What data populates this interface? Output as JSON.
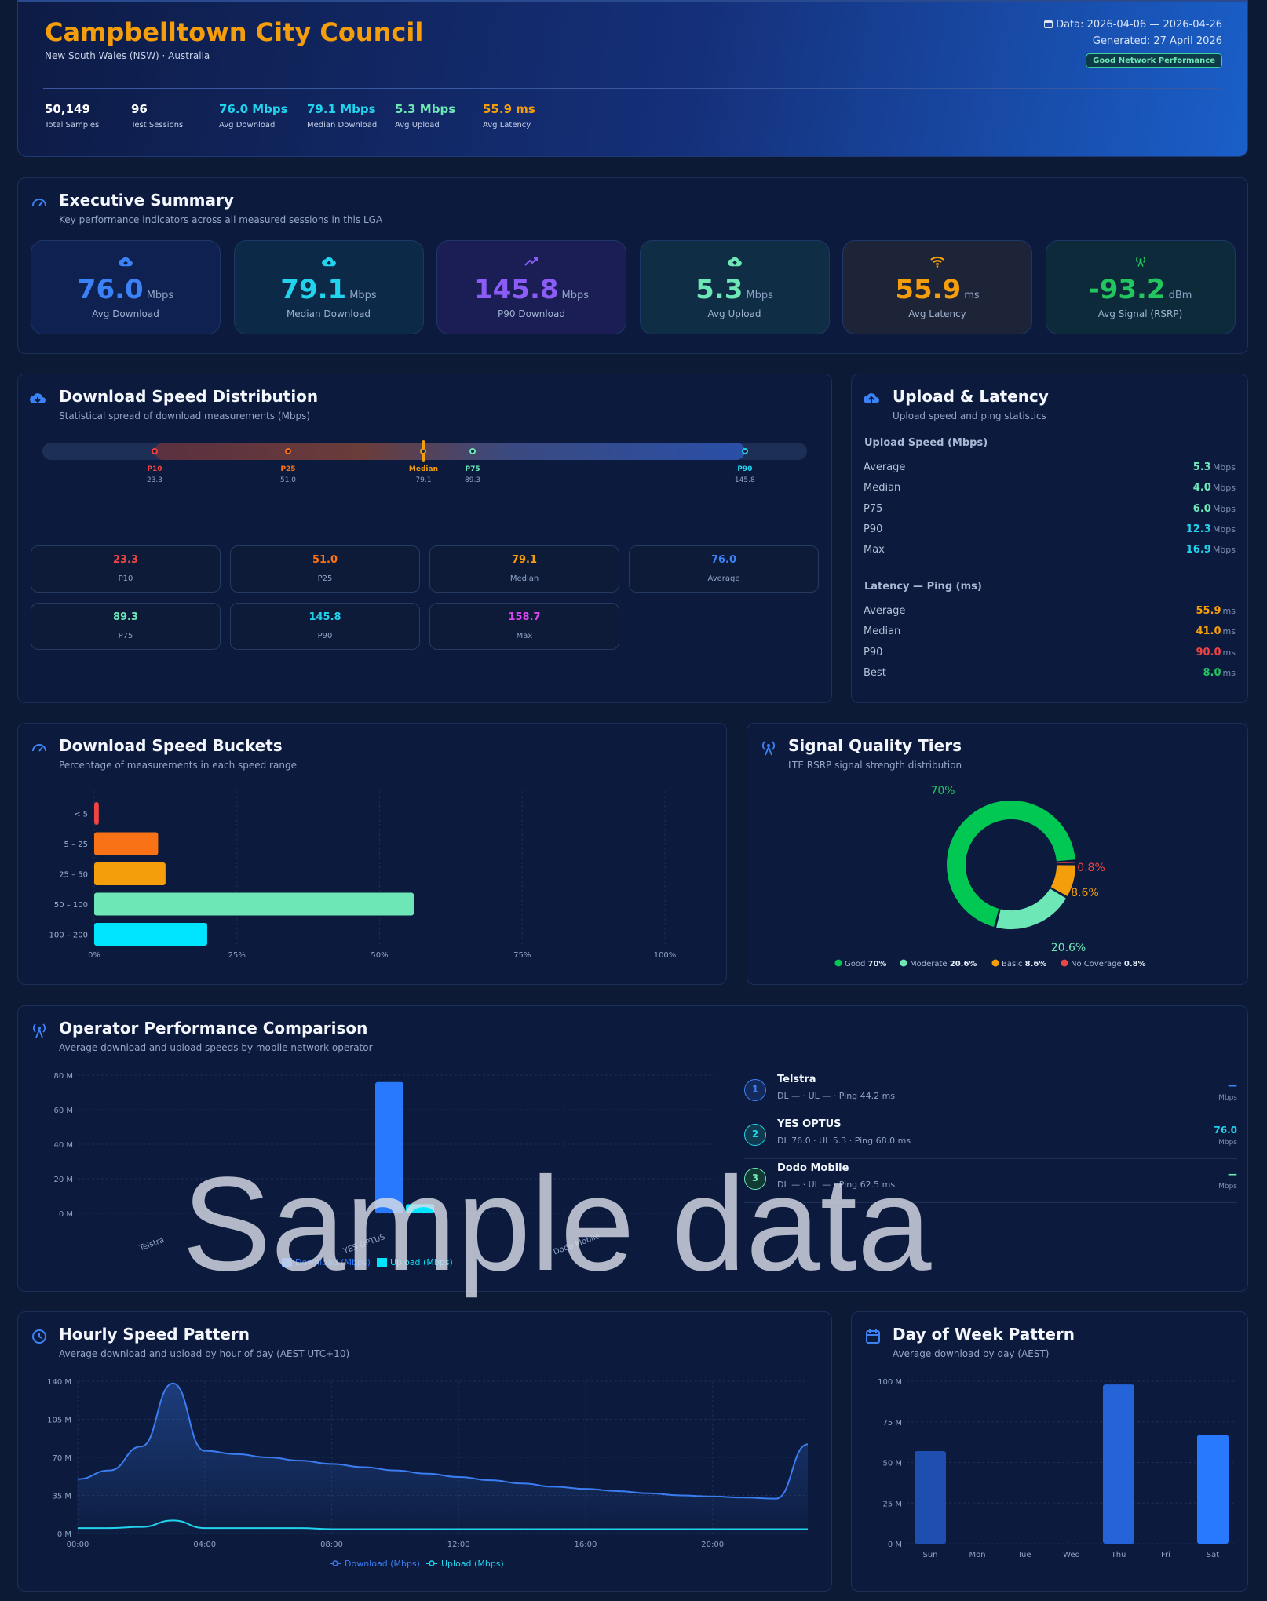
{
  "header": {
    "title": "Campbelltown City Council",
    "subtitle": "New South Wales (NSW) · Australia",
    "date_range": "Data: 2026-04-06 — 2026-04-26",
    "generated": "Generated: 27 April 2026",
    "badge": "Good Network Performance",
    "stats": [
      {
        "value": "50,149",
        "label": "Total Samples",
        "color": "#ffffff"
      },
      {
        "value": "96",
        "label": "Test Sessions",
        "color": "#ffffff"
      },
      {
        "value": "76.0 Mbps",
        "label": "Avg Download",
        "color": "#22d3ee"
      },
      {
        "value": "79.1 Mbps",
        "label": "Median Download",
        "color": "#22d3ee"
      },
      {
        "value": "5.3 Mbps",
        "label": "Avg Upload",
        "color": "#6ee7b7"
      },
      {
        "value": "55.9 ms",
        "label": "Avg Latency",
        "color": "#f59e0b"
      }
    ]
  },
  "executive": {
    "title": "Executive Summary",
    "subtitle": "Key performance indicators across all measured sessions in this LGA",
    "kpis": [
      {
        "icon": "cloud-download-icon",
        "value": "76.0",
        "unit": "Mbps",
        "label": "Avg Download",
        "color": "#3b82f6"
      },
      {
        "icon": "cloud-download-icon",
        "value": "79.1",
        "unit": "Mbps",
        "label": "Median Download",
        "color": "#22d3ee"
      },
      {
        "icon": "trending-up-icon",
        "value": "145.8",
        "unit": "Mbps",
        "label": "P90 Download",
        "color": "#8b5cf6"
      },
      {
        "icon": "cloud-upload-icon",
        "value": "5.3",
        "unit": "Mbps",
        "label": "Avg Upload",
        "color": "#6ee7b7"
      },
      {
        "icon": "wifi-icon",
        "value": "55.9",
        "unit": "ms",
        "label": "Avg Latency",
        "color": "#f59e0b"
      },
      {
        "icon": "signal-tower-icon",
        "value": "-93.2",
        "unit": "dBm",
        "label": "Avg Signal (RSRP)",
        "color": "#22c55e"
      }
    ]
  },
  "distribution": {
    "title": "Download Speed Distribution",
    "subtitle": "Statistical spread of download measurements (Mbps)",
    "markers": [
      {
        "name": "P10",
        "value": 23.3,
        "label": "23.3",
        "color": "#ef4444"
      },
      {
        "name": "P25",
        "value": 51.0,
        "label": "51.0",
        "color": "#f97316"
      },
      {
        "name": "Median",
        "value": 79.1,
        "label": "79.1",
        "color": "#f59e0b"
      },
      {
        "name": "P75",
        "value": 89.3,
        "label": "89.3",
        "color": "#6ee7b7"
      },
      {
        "name": "P90",
        "value": 145.8,
        "label": "145.8",
        "color": "#22d3ee"
      }
    ],
    "boxes": [
      {
        "value": "23.3",
        "label": "P10",
        "color": "#ef4444"
      },
      {
        "value": "51.0",
        "label": "P25",
        "color": "#f97316"
      },
      {
        "value": "79.1",
        "label": "Median",
        "color": "#f59e0b"
      },
      {
        "value": "76.0",
        "label": "Average",
        "color": "#3b82f6"
      },
      {
        "value": "89.3",
        "label": "P75",
        "color": "#6ee7b7"
      },
      {
        "value": "145.8",
        "label": "P90",
        "color": "#22d3ee"
      },
      {
        "value": "158.7",
        "label": "Max",
        "color": "#d946ef"
      }
    ]
  },
  "upload_latency": {
    "title": "Upload & Latency",
    "subtitle": "Upload speed and ping statistics",
    "upload_heading": "Upload Speed (Mbps)",
    "upload": [
      {
        "label": "Average",
        "value": "5.3",
        "unit": "Mbps",
        "color": "#6ee7b7"
      },
      {
        "label": "Median",
        "value": "4.0",
        "unit": "Mbps",
        "color": "#6ee7b7"
      },
      {
        "label": "P75",
        "value": "6.0",
        "unit": "Mbps",
        "color": "#6ee7b7"
      },
      {
        "label": "P90",
        "value": "12.3",
        "unit": "Mbps",
        "color": "#22d3ee"
      },
      {
        "label": "Max",
        "value": "16.9",
        "unit": "Mbps",
        "color": "#22d3ee"
      }
    ],
    "latency_heading": "Latency — Ping (ms)",
    "latency": [
      {
        "label": "Average",
        "value": "55.9",
        "unit": "ms",
        "color": "#f59e0b"
      },
      {
        "label": "Median",
        "value": "41.0",
        "unit": "ms",
        "color": "#f59e0b"
      },
      {
        "label": "P90",
        "value": "90.0",
        "unit": "ms",
        "color": "#ef4444"
      },
      {
        "label": "Best",
        "value": "8.0",
        "unit": "ms",
        "color": "#22c55e"
      }
    ]
  },
  "buckets_section": {
    "title": "Download Speed Buckets",
    "subtitle": "Percentage of measurements in each speed range"
  },
  "signal_section": {
    "title": "Signal Quality Tiers",
    "subtitle": "LTE RSRP signal strength distribution"
  },
  "operators_section": {
    "title": "Operator Performance Comparison",
    "subtitle": "Average download and upload speeds by mobile network operator",
    "list": [
      {
        "rank": "1",
        "name": "Telstra",
        "detail": "DL — · UL — · Ping 44.2 ms",
        "speed": "—",
        "unit": "Mbps",
        "color": "#3b82f6"
      },
      {
        "rank": "2",
        "name": "YES OPTUS",
        "detail": "DL 76.0 · UL 5.3 · Ping 68.0 ms",
        "speed": "76.0",
        "unit": "Mbps",
        "color": "#22d3ee"
      },
      {
        "rank": "3",
        "name": "Dodo Mobile",
        "detail": "DL — · UL — · Ping 62.5 ms",
        "speed": "—",
        "unit": "Mbps",
        "color": "#6ee7b7"
      }
    ]
  },
  "hourly_section": {
    "title": "Hourly Speed Pattern",
    "subtitle": "Average download and upload by hour of day (AEST UTC+10)"
  },
  "dow_section": {
    "title": "Day of Week Pattern",
    "subtitle": "Average download by day (AEST)"
  },
  "watermark": "Sample data",
  "chart_data": [
    {
      "id": "buckets",
      "type": "bar",
      "orientation": "horizontal",
      "categories": [
        "< 5",
        "5 – 25",
        "25 – 50",
        "50 – 100",
        "100 – 200"
      ],
      "values": [
        0.8,
        11.2,
        12.5,
        56.0,
        19.8
      ],
      "colors": [
        "#ef4444",
        "#f97316",
        "#f59e0b",
        "#6ee7b7",
        "#00e5ff"
      ],
      "xlim": [
        0,
        100
      ],
      "xticks": [
        "0%",
        "25%",
        "50%",
        "75%",
        "100%"
      ]
    },
    {
      "id": "signal",
      "type": "pie",
      "donut": true,
      "labels": [
        "Good",
        "Moderate",
        "Basic",
        "No Coverage"
      ],
      "values": [
        70,
        20.6,
        8.6,
        0.8
      ],
      "display": [
        "70%",
        "20.6%",
        "8.6%",
        "0.8%"
      ],
      "colors": [
        "#00c853",
        "#6ee7b7",
        "#f59e0b",
        "#ef4444"
      ]
    },
    {
      "id": "operators",
      "type": "bar",
      "categories": [
        "Telstra",
        "YES OPTUS",
        "Dodo Mobile"
      ],
      "series": [
        {
          "name": "Download (Mbps)",
          "values": [
            0,
            76.0,
            0
          ],
          "color": "#2979ff"
        },
        {
          "name": "Upload (Mbps)",
          "values": [
            0,
            5.3,
            0
          ],
          "color": "#00e5ff"
        }
      ],
      "ylim": [
        0,
        80
      ],
      "yticks": [
        "0 M",
        "20 M",
        "40 M",
        "60 M",
        "80 M"
      ]
    },
    {
      "id": "hourly",
      "type": "line",
      "x": [
        0,
        1,
        2,
        3,
        4,
        5,
        6,
        7,
        8,
        9,
        10,
        11,
        12,
        13,
        14,
        15,
        16,
        17,
        18,
        19,
        20,
        21,
        22,
        23
      ],
      "xticks": [
        "00:00",
        "04:00",
        "08:00",
        "12:00",
        "16:00",
        "20:00"
      ],
      "series": [
        {
          "name": "Download (Mbps)",
          "values": [
            50,
            58,
            80,
            138,
            76,
            73,
            70,
            67,
            64,
            61,
            58,
            55,
            52,
            49,
            46,
            43,
            41,
            39,
            37,
            35,
            34,
            33,
            32,
            82
          ],
          "color": "#3b7cf0"
        },
        {
          "name": "Upload (Mbps)",
          "values": [
            5,
            5,
            6,
            12,
            5,
            5,
            5,
            5,
            4,
            4,
            4,
            4,
            4,
            4,
            4,
            4,
            4,
            4,
            4,
            4,
            4,
            4,
            4,
            4
          ],
          "color": "#22d3ee"
        }
      ],
      "ylim": [
        0,
        140
      ],
      "yticks": [
        "0 M",
        "35 M",
        "70 M",
        "105 M",
        "140 M"
      ]
    },
    {
      "id": "dow",
      "type": "bar",
      "categories": [
        "Sun",
        "Mon",
        "Tue",
        "Wed",
        "Thu",
        "Fri",
        "Sat"
      ],
      "values": [
        57,
        0,
        0,
        0,
        98,
        0,
        67
      ],
      "colors": [
        "#1e4fb0",
        "#1e4fb0",
        "#1e4fb0",
        "#1e4fb0",
        "#2563d9",
        "#2563d9",
        "#2979ff"
      ],
      "ylim": [
        0,
        100
      ],
      "yticks": [
        "0 M",
        "25 M",
        "50 M",
        "75 M",
        "100 M"
      ]
    }
  ]
}
